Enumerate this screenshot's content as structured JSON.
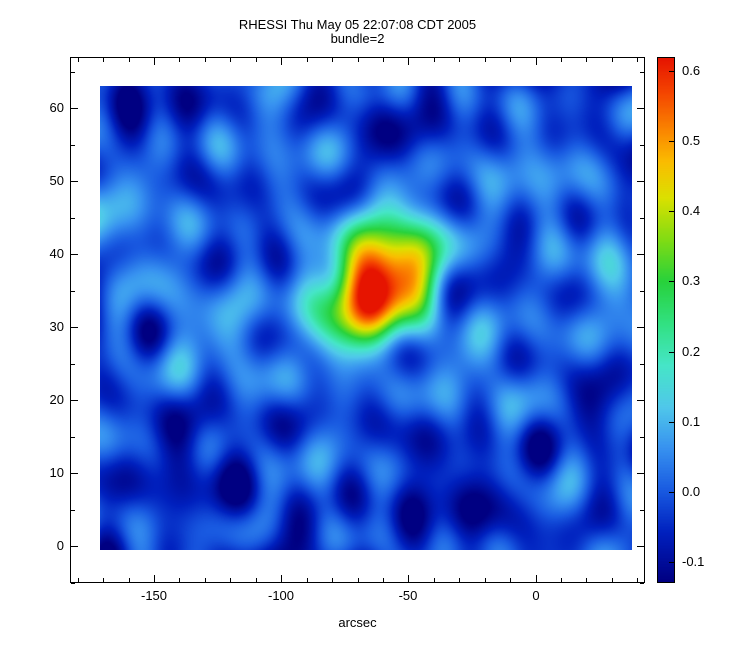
{
  "chart_data": {
    "type": "heatmap",
    "title": "RHESSI Thu May 05 22:07:08 CDT 2005",
    "subtitle": "bundle=2",
    "xlabel": "arcsec",
    "axes_x_range": [
      -183,
      43
    ],
    "axes_y_range": [
      -5,
      67
    ],
    "image_x_extent": [
      -171,
      38
    ],
    "image_y_extent": [
      -0.5,
      63
    ],
    "x_ticks": [
      -150,
      -100,
      -50,
      0
    ],
    "x_tick_labels": [
      "-150",
      "-100",
      "-50",
      "0"
    ],
    "x_minor_step": 10,
    "y_ticks": [
      0,
      10,
      20,
      30,
      40,
      50,
      60
    ],
    "y_tick_labels": [
      "0",
      "10",
      "20",
      "30",
      "40",
      "50",
      "60"
    ],
    "y_minor_step": 5,
    "colorbar": {
      "min": -0.13,
      "max": 0.62,
      "ticks": [
        -0.1,
        0.0,
        0.1,
        0.2,
        0.3,
        0.4,
        0.5,
        0.6
      ],
      "tick_labels": [
        "-0.1",
        "0.0",
        "0.1",
        "0.2",
        "0.3",
        "0.4",
        "0.5",
        "0.6"
      ]
    },
    "colormap": [
      {
        "v": -0.13,
        "c": "#000082"
      },
      {
        "v": -0.06,
        "c": "#0020BE"
      },
      {
        "v": 0.0,
        "c": "#195AE1"
      },
      {
        "v": 0.06,
        "c": "#3791F0"
      },
      {
        "v": 0.12,
        "c": "#50C8EB"
      },
      {
        "v": 0.18,
        "c": "#46E6C8"
      },
      {
        "v": 0.24,
        "c": "#32E182"
      },
      {
        "v": 0.3,
        "c": "#28D23C"
      },
      {
        "v": 0.36,
        "c": "#82DC14"
      },
      {
        "v": 0.42,
        "c": "#DCE100"
      },
      {
        "v": 0.47,
        "c": "#FABE00"
      },
      {
        "v": 0.52,
        "c": "#FA8200"
      },
      {
        "v": 0.57,
        "c": "#F54600"
      },
      {
        "v": 0.62,
        "c": "#E61400"
      }
    ],
    "field": {
      "baseline": -0.015,
      "sources": [
        {
          "x": -62,
          "y": 35.5,
          "sx": 13,
          "sy": 5.2,
          "amp": 0.66,
          "rot_deg": 10
        },
        {
          "x": -44,
          "y": 38.5,
          "sx": 6,
          "sy": 4.5,
          "amp": 0.1,
          "rot_deg": 0
        },
        {
          "x": -80,
          "y": 30,
          "sx": 7,
          "sy": 5,
          "amp": 0.08,
          "rot_deg": 0
        }
      ],
      "ripples": [
        {
          "kx": 0.02,
          "ky": 0.6,
          "phase": 1.0,
          "amp": 0.03
        },
        {
          "kx": 0.26,
          "ky": 0.08,
          "phase": 2.1,
          "amp": 0.022
        },
        {
          "kx": 0.17,
          "ky": -0.34,
          "phase": 0.7,
          "amp": 0.026
        },
        {
          "kx": -0.12,
          "ky": 0.44,
          "phase": 3.6,
          "amp": 0.024
        },
        {
          "kx": 0.31,
          "ky": 0.27,
          "phase": 5.0,
          "amp": 0.018
        },
        {
          "kx": 0.07,
          "ky": 0.16,
          "phase": 4.2,
          "amp": 0.028
        },
        {
          "kx": -0.27,
          "ky": 0.14,
          "phase": 1.9,
          "amp": 0.02
        },
        {
          "kx": 0.14,
          "ky": 0.5,
          "phase": 2.8,
          "amp": 0.018
        },
        {
          "kx": 0.05,
          "ky": -0.24,
          "phase": 0.3,
          "amp": 0.024
        },
        {
          "kx": 0.0,
          "ky": 0.09,
          "phase": 2.9,
          "amp": 0.032
        }
      ]
    }
  }
}
